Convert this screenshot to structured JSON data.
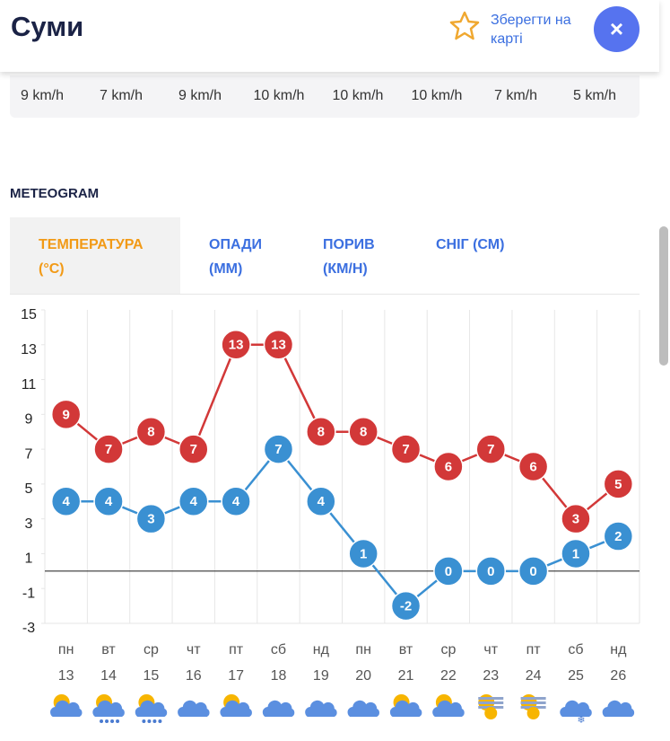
{
  "header": {
    "title": "Суми",
    "save": "Зберегти на карті"
  },
  "wind": [
    "9 km/h",
    "7 km/h",
    "9 km/h",
    "10 km/h",
    "10 km/h",
    "10 km/h",
    "7 km/h",
    "5 km/h"
  ],
  "section_title": "METEOGRAM",
  "tabs": [
    "ТЕМПЕРАТУРА (°C)",
    "ОПАДИ (ММ)",
    "ПОРИВ (КМ/Н)",
    "СНІГ (СМ)"
  ],
  "chart_data": {
    "type": "line",
    "categories": [
      "пн",
      "вт",
      "ср",
      "чт",
      "пт",
      "сб",
      "нд",
      "пн",
      "вт",
      "ср",
      "чт",
      "пт",
      "сб",
      "нд"
    ],
    "dates": [
      13,
      14,
      15,
      16,
      17,
      18,
      19,
      20,
      21,
      22,
      23,
      24,
      25,
      26
    ],
    "series": [
      {
        "color": "#d23838",
        "values": [
          9,
          7,
          8,
          7,
          13,
          13,
          8,
          8,
          7,
          6,
          7,
          6,
          3,
          5
        ]
      },
      {
        "color": "#3a90d2",
        "values": [
          4,
          4,
          3,
          4,
          4,
          7,
          4,
          1,
          -2,
          0,
          0,
          0,
          1,
          2
        ]
      }
    ],
    "ylim": [
      -3,
      15
    ],
    "yticks": [
      -3,
      -1,
      1,
      3,
      5,
      7,
      9,
      11,
      13,
      15
    ],
    "grid": true
  }
}
